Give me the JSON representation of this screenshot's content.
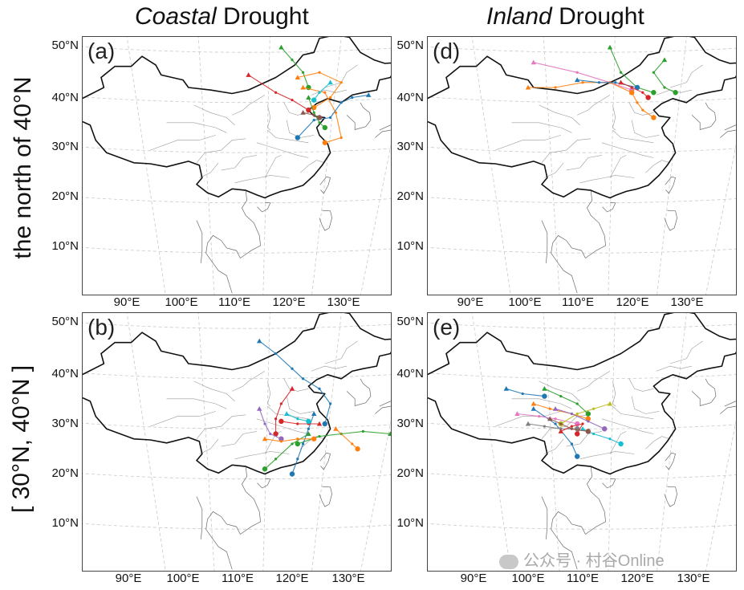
{
  "columns": [
    {
      "title_italic": "Coastal",
      "title_rest": " Drought"
    },
    {
      "title_italic": "Inland",
      "title_rest": " Drought"
    }
  ],
  "rows": [
    {
      "label": "the north of 40°N"
    },
    {
      "label": "[ 30°N, 40°N ]"
    }
  ],
  "panels": [
    {
      "label": "(a)"
    },
    {
      "label": "(d)"
    },
    {
      "label": "(b)"
    },
    {
      "label": "(e)"
    }
  ],
  "axes": {
    "lat_ticks": [
      "50°N",
      "40°N",
      "30°N",
      "20°N",
      "10°N"
    ],
    "lon_ticks": [
      "90°E",
      "100°E",
      "110°E",
      "120°E",
      "130°E"
    ]
  },
  "watermark": "公众号 · 村谷Online",
  "colors": [
    "#1f77b4",
    "#ff7f0e",
    "#2ca02c",
    "#d62728",
    "#9467bd",
    "#8c564b",
    "#e377c2",
    "#7f7f7f",
    "#bcbd22",
    "#17becf"
  ],
  "trajectories": {
    "a": [
      {
        "color": "#d62728",
        "points": [
          [
            107,
            45.5
          ],
          [
            112,
            42
          ],
          [
            115,
            40.5
          ],
          [
            118,
            38.5
          ]
        ]
      },
      {
        "color": "#2ca02c",
        "points": [
          [
            113,
            51
          ],
          [
            115,
            48.5
          ],
          [
            117,
            46
          ],
          [
            118,
            43
          ]
        ]
      },
      {
        "color": "#ff7f0e",
        "points": [
          [
            116,
            45
          ],
          [
            120,
            46
          ],
          [
            124,
            44
          ],
          [
            122,
            41
          ],
          [
            119,
            39
          ]
        ]
      },
      {
        "color": "#ff7f0e",
        "points": [
          [
            117,
            43
          ],
          [
            121,
            42
          ],
          [
            123,
            38
          ],
          [
            124,
            33
          ],
          [
            121,
            32
          ]
        ]
      },
      {
        "color": "#1f77b4",
        "points": [
          [
            129,
            41.5
          ],
          [
            126,
            41
          ],
          [
            124,
            40
          ],
          [
            122,
            37
          ],
          [
            119,
            36.5
          ],
          [
            116,
            33
          ]
        ]
      },
      {
        "color": "#2ca02c",
        "points": [
          [
            118,
            41
          ],
          [
            119,
            38
          ],
          [
            120,
            36
          ],
          [
            121,
            35
          ]
        ]
      },
      {
        "color": "#17becf",
        "points": [
          [
            122,
            44
          ],
          [
            120,
            42
          ],
          [
            119,
            40.5
          ]
        ]
      },
      {
        "color": "#8c564b",
        "points": [
          [
            117,
            38
          ],
          [
            119,
            37.5
          ],
          [
            120,
            37
          ]
        ]
      }
    ],
    "d": [
      {
        "color": "#e377c2",
        "points": [
          [
            96,
            48
          ],
          [
            104,
            46
          ],
          [
            110,
            44
          ],
          [
            114,
            42.5
          ]
        ]
      },
      {
        "color": "#2ca02c",
        "points": [
          [
            110,
            51
          ],
          [
            112,
            46
          ],
          [
            115,
            43
          ],
          [
            118,
            42
          ]
        ]
      },
      {
        "color": "#2ca02c",
        "points": [
          [
            120,
            48.5
          ],
          [
            118,
            46
          ],
          [
            120,
            43
          ],
          [
            122,
            42
          ]
        ]
      },
      {
        "color": "#ff7f0e",
        "points": [
          [
            95,
            43
          ],
          [
            100,
            43
          ],
          [
            105,
            44
          ],
          [
            110,
            44
          ],
          [
            114,
            42
          ]
        ]
      },
      {
        "color": "#1f77b4",
        "points": [
          [
            104,
            44.5
          ],
          [
            108,
            44
          ],
          [
            111,
            44
          ],
          [
            115,
            43
          ]
        ]
      },
      {
        "color": "#d62728",
        "points": [
          [
            112,
            44
          ],
          [
            114,
            43
          ],
          [
            116,
            42
          ],
          [
            117,
            41
          ]
        ]
      },
      {
        "color": "#ff7f0e",
        "points": [
          [
            114,
            42
          ],
          [
            115,
            40
          ],
          [
            116,
            38.5
          ],
          [
            118,
            37
          ]
        ]
      }
    ],
    "b": [
      {
        "color": "#1f77b4",
        "points": [
          [
            109,
            47.5
          ],
          [
            112,
            45
          ],
          [
            115,
            42
          ],
          [
            117,
            40
          ],
          [
            120,
            38
          ],
          [
            122,
            35
          ],
          [
            121,
            31
          ]
        ]
      },
      {
        "color": "#2ca02c",
        "points": [
          [
            133,
            29
          ],
          [
            128,
            29.5
          ],
          [
            124,
            29
          ],
          [
            120,
            28.5
          ],
          [
            116,
            27
          ]
        ]
      },
      {
        "color": "#ff7f0e",
        "points": [
          [
            123,
            30
          ],
          [
            126,
            27
          ],
          [
            127,
            26
          ]
        ]
      },
      {
        "color": "#1f77b4",
        "points": [
          [
            119,
            33
          ],
          [
            118,
            30
          ],
          [
            117,
            27
          ],
          [
            116,
            24
          ],
          [
            115,
            21
          ]
        ]
      },
      {
        "color": "#d62728",
        "points": [
          [
            115,
            38
          ],
          [
            113,
            35
          ],
          [
            112,
            32
          ],
          [
            112,
            29
          ]
        ]
      },
      {
        "color": "#9467bd",
        "points": [
          [
            109,
            34
          ],
          [
            110,
            31
          ],
          [
            111,
            29
          ],
          [
            113,
            28
          ]
        ]
      },
      {
        "color": "#2ca02c",
        "points": [
          [
            118,
            29
          ],
          [
            115,
            27
          ],
          [
            112,
            24
          ],
          [
            110,
            22
          ]
        ]
      },
      {
        "color": "#d62728",
        "points": [
          [
            120,
            31
          ],
          [
            118,
            31
          ],
          [
            116,
            31
          ],
          [
            113,
            31.5
          ]
        ]
      },
      {
        "color": "#ff7f0e",
        "points": [
          [
            110,
            28
          ],
          [
            113,
            27.5
          ],
          [
            116,
            28
          ],
          [
            119,
            28
          ]
        ]
      },
      {
        "color": "#17becf",
        "points": [
          [
            114,
            33
          ],
          [
            116,
            32
          ],
          [
            118,
            31.5
          ]
        ]
      }
    ],
    "e": [
      {
        "color": "#1f77b4",
        "points": [
          [
            91,
            38
          ],
          [
            94,
            37
          ],
          [
            98,
            36.5
          ]
        ]
      },
      {
        "color": "#1f77b4",
        "points": [
          [
            96,
            34
          ],
          [
            100,
            31
          ],
          [
            103,
            27
          ],
          [
            104,
            24.5
          ]
        ]
      },
      {
        "color": "#e377c2",
        "points": [
          [
            93,
            33
          ],
          [
            97,
            32.5
          ],
          [
            100,
            32
          ],
          [
            104,
            31
          ]
        ]
      },
      {
        "color": "#ff7f0e",
        "points": [
          [
            96,
            35
          ],
          [
            99,
            34
          ],
          [
            103,
            33
          ],
          [
            106,
            32
          ]
        ]
      },
      {
        "color": "#bcbd22",
        "points": [
          [
            110,
            35
          ],
          [
            107,
            34
          ],
          [
            104,
            33
          ],
          [
            101,
            31
          ]
        ]
      },
      {
        "color": "#2ca02c",
        "points": [
          [
            98,
            38
          ],
          [
            101,
            36.5
          ],
          [
            104,
            35
          ],
          [
            106,
            33
          ]
        ]
      },
      {
        "color": "#9467bd",
        "points": [
          [
            100,
            34
          ],
          [
            103,
            33
          ],
          [
            106,
            31.5
          ],
          [
            109,
            30
          ]
        ]
      },
      {
        "color": "#7f7f7f",
        "points": [
          [
            95,
            31
          ],
          [
            98,
            30.5
          ],
          [
            101,
            30
          ],
          [
            104,
            30
          ]
        ]
      },
      {
        "color": "#d62728",
        "points": [
          [
            101,
            29.5
          ],
          [
            103,
            30.5
          ],
          [
            105,
            31
          ],
          [
            104,
            29
          ]
        ]
      },
      {
        "color": "#17becf",
        "points": [
          [
            105,
            30
          ],
          [
            107,
            29
          ],
          [
            110,
            28
          ],
          [
            112,
            27
          ]
        ]
      },
      {
        "color": "#8c564b",
        "points": [
          [
            99,
            32
          ],
          [
            101,
            31
          ],
          [
            103,
            30
          ],
          [
            106,
            29.5
          ]
        ]
      }
    ]
  }
}
